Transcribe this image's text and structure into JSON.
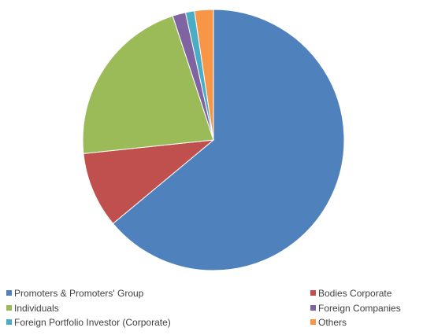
{
  "chart_data": {
    "type": "pie",
    "title": "",
    "start_angle_deg": 0,
    "direction": "clockwise",
    "slices": [
      {
        "name": "Promoters & Promoters' Group",
        "value": 63.3,
        "color": "#4f81bd"
      },
      {
        "name": "Bodies Corporate",
        "value": 9.3,
        "color": "#c0504d"
      },
      {
        "name": "Individuals",
        "value": 21.4,
        "color": "#9bbb59"
      },
      {
        "name": "Foreign Companies",
        "value": 1.6,
        "color": "#8064a2"
      },
      {
        "name": "Foreign Portfolio Investor (Corporate)",
        "value": 1.1,
        "color": "#4bacc6"
      },
      {
        "name": "Others",
        "value": 2.3,
        "color": "#f79646"
      }
    ],
    "legend": {
      "placement": "bottom",
      "columns": 2
    }
  }
}
